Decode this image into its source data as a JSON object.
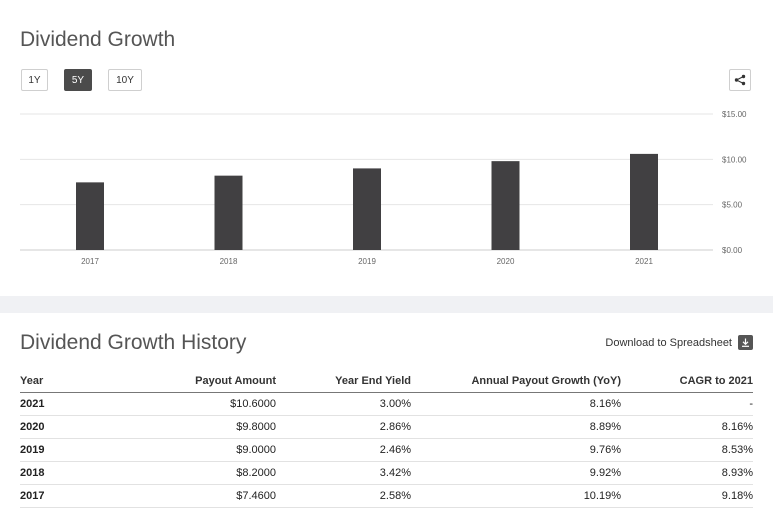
{
  "header": {
    "title": "Dividend Growth",
    "ranges": [
      "1Y",
      "5Y",
      "10Y"
    ],
    "active_range": "5Y",
    "share_icon": "share-icon"
  },
  "chart_data": {
    "type": "bar",
    "categories": [
      "2017",
      "2018",
      "2019",
      "2020",
      "2021"
    ],
    "values": [
      7.46,
      8.2,
      9.0,
      9.8,
      10.6
    ],
    "ylim": [
      0,
      15
    ],
    "yticks": [
      "$0.00",
      "$5.00",
      "$10.00",
      "$15.00"
    ],
    "ytick_values": [
      0,
      5,
      10,
      15
    ],
    "grid": true,
    "bar_color": "#414042"
  },
  "history": {
    "title": "Dividend Growth History",
    "download_label": "Download to Spreadsheet",
    "download_icon": "download-icon",
    "columns": [
      "Year",
      "Payout Amount",
      "Year End Yield",
      "Annual Payout Growth (YoY)",
      "CAGR to 2021"
    ],
    "rows": [
      [
        "2021",
        "$10.6000",
        "3.00%",
        "8.16%",
        "-"
      ],
      [
        "2020",
        "$9.8000",
        "2.86%",
        "8.89%",
        "8.16%"
      ],
      [
        "2019",
        "$9.0000",
        "2.46%",
        "9.76%",
        "8.53%"
      ],
      [
        "2018",
        "$8.2000",
        "3.42%",
        "9.92%",
        "8.93%"
      ],
      [
        "2017",
        "$7.4600",
        "2.58%",
        "10.19%",
        "9.18%"
      ]
    ]
  }
}
